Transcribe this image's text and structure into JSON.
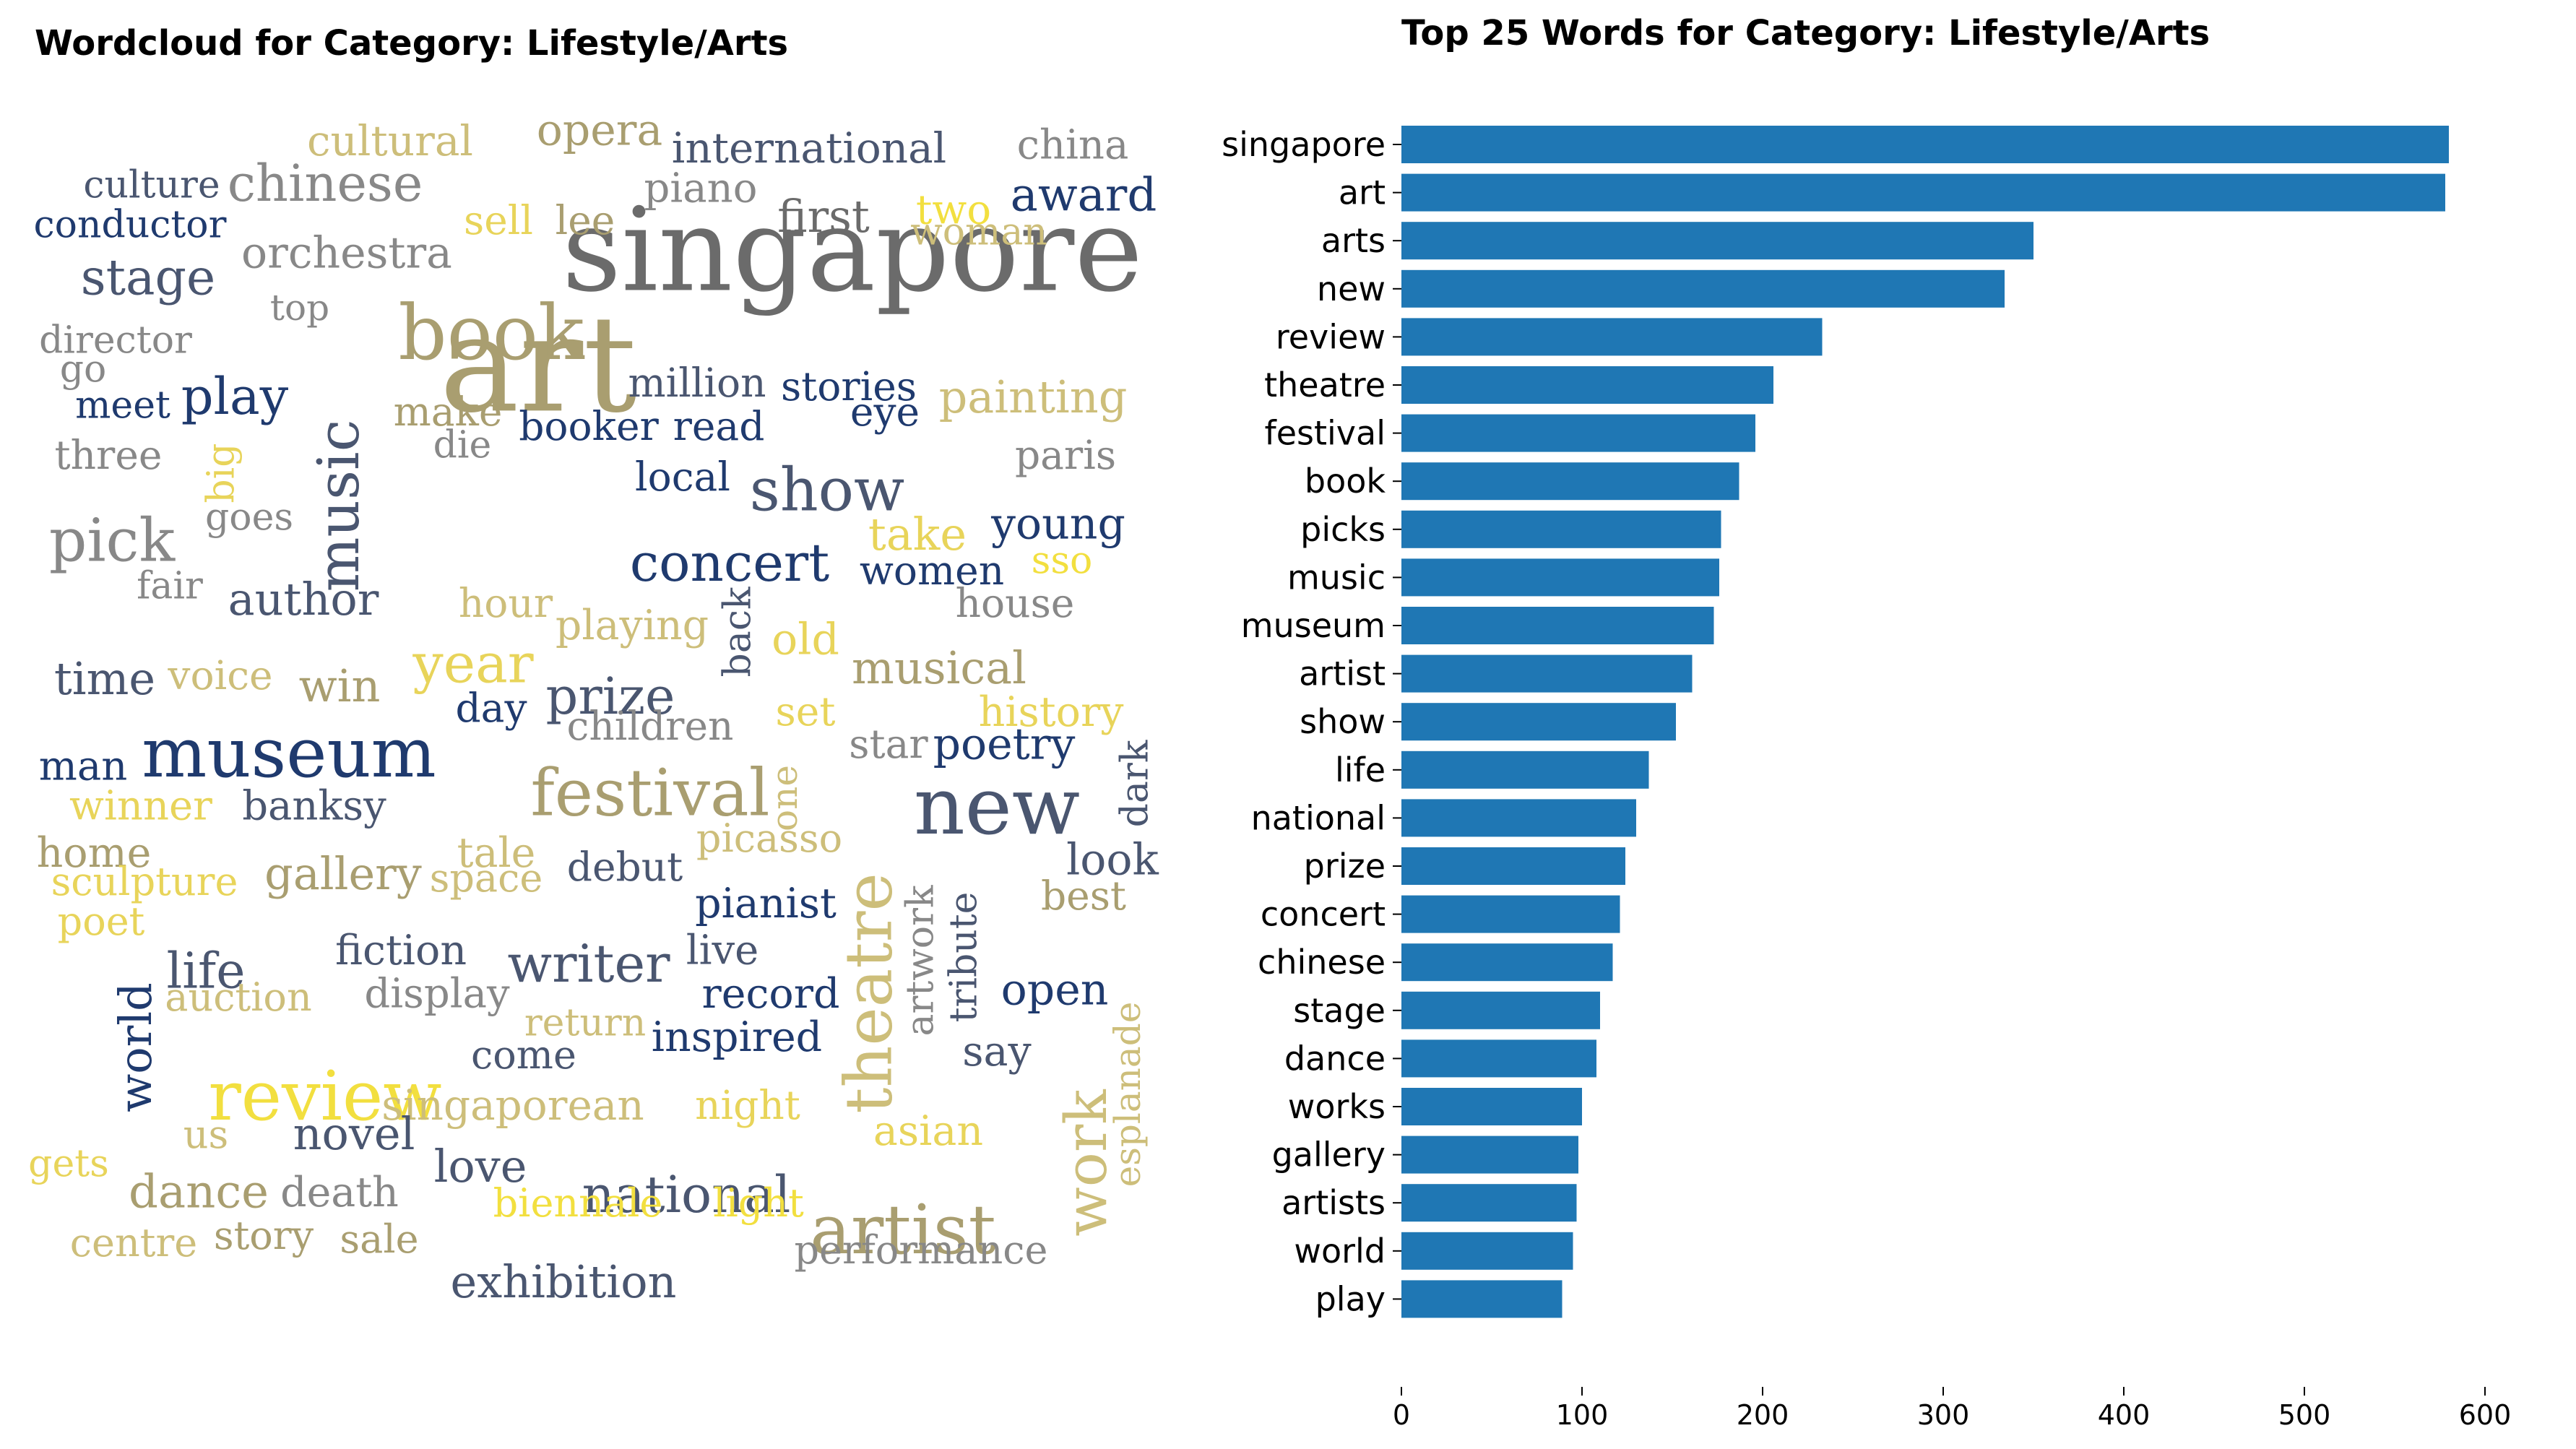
{
  "titles": {
    "wordcloud": "Wordcloud for Category: Lifestyle/Arts",
    "bar": "Top 25 Words for Category: Lifestyle/Arts"
  },
  "colors": {
    "bar": "#1f77b4",
    "wordcloud_palette": [
      "#6b6b6b",
      "#a99e70",
      "#1f3a6e",
      "#f2df3f",
      "#cdbe7a",
      "#4a5670",
      "#888888",
      "#e8d45a"
    ]
  },
  "wordcloud_words": [
    {
      "text": "singapore",
      "color": "#6b6b6b"
    },
    {
      "text": "art",
      "color": "#a99e70"
    },
    {
      "text": "book",
      "color": "#a99e70"
    },
    {
      "text": "museum",
      "color": "#1f3a6e"
    },
    {
      "text": "new",
      "color": "#4a5670"
    },
    {
      "text": "review",
      "color": "#f2df3f"
    },
    {
      "text": "festival",
      "color": "#a99e70"
    },
    {
      "text": "artist",
      "color": "#a99e70"
    },
    {
      "text": "theatre",
      "color": "#cdbe7a"
    },
    {
      "text": "show",
      "color": "#4a5670"
    },
    {
      "text": "music",
      "color": "#4a5670"
    },
    {
      "text": "pick",
      "color": "#888888"
    },
    {
      "text": "concert",
      "color": "#1f3a6e"
    },
    {
      "text": "chinese",
      "color": "#888888"
    },
    {
      "text": "play",
      "color": "#1f3a6e"
    },
    {
      "text": "writer",
      "color": "#4a5670"
    },
    {
      "text": "national",
      "color": "#4a5670"
    },
    {
      "text": "year",
      "color": "#e8d45a"
    },
    {
      "text": "prize",
      "color": "#4a5670"
    },
    {
      "text": "work",
      "color": "#cdbe7a"
    },
    {
      "text": "life",
      "color": "#4a5670"
    },
    {
      "text": "stage",
      "color": "#4a5670"
    },
    {
      "text": "exhibition",
      "color": "#4a5670"
    },
    {
      "text": "orchestra",
      "color": "#888888"
    },
    {
      "text": "award",
      "color": "#1f3a6e"
    },
    {
      "text": "international",
      "color": "#4a5670"
    },
    {
      "text": "opera",
      "color": "#a99e70"
    },
    {
      "text": "cultural",
      "color": "#cdbe7a"
    },
    {
      "text": "china",
      "color": "#888888"
    },
    {
      "text": "culture",
      "color": "#4a5670"
    },
    {
      "text": "conductor",
      "color": "#1f3a6e"
    },
    {
      "text": "first",
      "color": "#6b6b6b"
    },
    {
      "text": "piano",
      "color": "#888888"
    },
    {
      "text": "sell",
      "color": "#e8d45a"
    },
    {
      "text": "lee",
      "color": "#a99e70"
    },
    {
      "text": "two",
      "color": "#f2df3f"
    },
    {
      "text": "woman",
      "color": "#cdbe7a"
    },
    {
      "text": "top",
      "color": "#888888"
    },
    {
      "text": "director",
      "color": "#888888"
    },
    {
      "text": "go",
      "color": "#888888"
    },
    {
      "text": "meet",
      "color": "#1f3a6e"
    },
    {
      "text": "million",
      "color": "#4a5670"
    },
    {
      "text": "stories",
      "color": "#1f3a6e"
    },
    {
      "text": "painting",
      "color": "#cdbe7a"
    },
    {
      "text": "make",
      "color": "#a99e70"
    },
    {
      "text": "die",
      "color": "#888888"
    },
    {
      "text": "booker",
      "color": "#1f3a6e"
    },
    {
      "text": "read",
      "color": "#1f3a6e"
    },
    {
      "text": "eye",
      "color": "#1f3a6e"
    },
    {
      "text": "three",
      "color": "#888888"
    },
    {
      "text": "big",
      "color": "#e8d45a"
    },
    {
      "text": "paris",
      "color": "#888888"
    },
    {
      "text": "local",
      "color": "#1f3a6e"
    },
    {
      "text": "goes",
      "color": "#888888"
    },
    {
      "text": "take",
      "color": "#e8d45a"
    },
    {
      "text": "young",
      "color": "#1f3a6e"
    },
    {
      "text": "women",
      "color": "#1f3a6e"
    },
    {
      "text": "sso",
      "color": "#f2df3f"
    },
    {
      "text": "fair",
      "color": "#888888"
    },
    {
      "text": "author",
      "color": "#4a5670"
    },
    {
      "text": "hour",
      "color": "#cdbe7a"
    },
    {
      "text": "house",
      "color": "#888888"
    },
    {
      "text": "playing",
      "color": "#cdbe7a"
    },
    {
      "text": "back",
      "color": "#4a5670"
    },
    {
      "text": "old",
      "color": "#e8d45a"
    },
    {
      "text": "time",
      "color": "#4a5670"
    },
    {
      "text": "voice",
      "color": "#cdbe7a"
    },
    {
      "text": "win",
      "color": "#a99e70"
    },
    {
      "text": "musical",
      "color": "#a99e70"
    },
    {
      "text": "day",
      "color": "#1f3a6e"
    },
    {
      "text": "set",
      "color": "#e8d45a"
    },
    {
      "text": "history",
      "color": "#e8d45a"
    },
    {
      "text": "children",
      "color": "#888888"
    },
    {
      "text": "man",
      "color": "#1f3a6e"
    },
    {
      "text": "star",
      "color": "#888888"
    },
    {
      "text": "poetry",
      "color": "#1f3a6e"
    },
    {
      "text": "dark",
      "color": "#4a5670"
    },
    {
      "text": "winner",
      "color": "#e8d45a"
    },
    {
      "text": "banksy",
      "color": "#4a5670"
    },
    {
      "text": "one",
      "color": "#cdbe7a"
    },
    {
      "text": "home",
      "color": "#a99e70"
    },
    {
      "text": "tale",
      "color": "#cdbe7a"
    },
    {
      "text": "picasso",
      "color": "#cdbe7a"
    },
    {
      "text": "look",
      "color": "#4a5670"
    },
    {
      "text": "sculpture",
      "color": "#e8d45a"
    },
    {
      "text": "gallery",
      "color": "#a99e70"
    },
    {
      "text": "space",
      "color": "#cdbe7a"
    },
    {
      "text": "debut",
      "color": "#4a5670"
    },
    {
      "text": "best",
      "color": "#a99e70"
    },
    {
      "text": "poet",
      "color": "#e8d45a"
    },
    {
      "text": "pianist",
      "color": "#1f3a6e"
    },
    {
      "text": "artwork",
      "color": "#888888"
    },
    {
      "text": "tribute",
      "color": "#4a5670"
    },
    {
      "text": "fiction",
      "color": "#4a5670"
    },
    {
      "text": "live",
      "color": "#4a5670"
    },
    {
      "text": "auction",
      "color": "#cdbe7a"
    },
    {
      "text": "display",
      "color": "#888888"
    },
    {
      "text": "record",
      "color": "#1f3a6e"
    },
    {
      "text": "open",
      "color": "#1f3a6e"
    },
    {
      "text": "world",
      "color": "#1f3a6e"
    },
    {
      "text": "return",
      "color": "#cdbe7a"
    },
    {
      "text": "inspired",
      "color": "#1f3a6e"
    },
    {
      "text": "come",
      "color": "#4a5670"
    },
    {
      "text": "say",
      "color": "#4a5670"
    },
    {
      "text": "esplanade",
      "color": "#cdbe7a"
    },
    {
      "text": "singaporean",
      "color": "#cdbe7a"
    },
    {
      "text": "night",
      "color": "#e8d45a"
    },
    {
      "text": "us",
      "color": "#cdbe7a"
    },
    {
      "text": "novel",
      "color": "#4a5670"
    },
    {
      "text": "asian",
      "color": "#e8d45a"
    },
    {
      "text": "gets",
      "color": "#e8d45a"
    },
    {
      "text": "love",
      "color": "#4a5670"
    },
    {
      "text": "dance",
      "color": "#a99e70"
    },
    {
      "text": "death",
      "color": "#888888"
    },
    {
      "text": "biennale",
      "color": "#f2df3f"
    },
    {
      "text": "light",
      "color": "#f2df3f"
    },
    {
      "text": "centre",
      "color": "#cdbe7a"
    },
    {
      "text": "story",
      "color": "#a99e70"
    },
    {
      "text": "sale",
      "color": "#a99e70"
    },
    {
      "text": "performance",
      "color": "#888888"
    }
  ],
  "chart_data": {
    "type": "bar",
    "orientation": "horizontal",
    "title": "Top 25 Words for Category: Lifestyle/Arts",
    "categories": [
      "singapore",
      "art",
      "arts",
      "new",
      "review",
      "theatre",
      "festival",
      "book",
      "picks",
      "music",
      "museum",
      "artist",
      "show",
      "life",
      "national",
      "prize",
      "concert",
      "chinese",
      "stage",
      "dance",
      "works",
      "gallery",
      "artists",
      "world",
      "play"
    ],
    "values": [
      580,
      578,
      350,
      334,
      233,
      206,
      196,
      187,
      177,
      176,
      173,
      161,
      152,
      137,
      130,
      124,
      121,
      117,
      110,
      108,
      100,
      98,
      97,
      95,
      89
    ],
    "xlim": [
      0,
      600
    ],
    "xticks": [
      "0",
      "100",
      "200",
      "300",
      "400",
      "500",
      "600"
    ],
    "xlabel": "",
    "ylabel": "",
    "grid": false
  }
}
